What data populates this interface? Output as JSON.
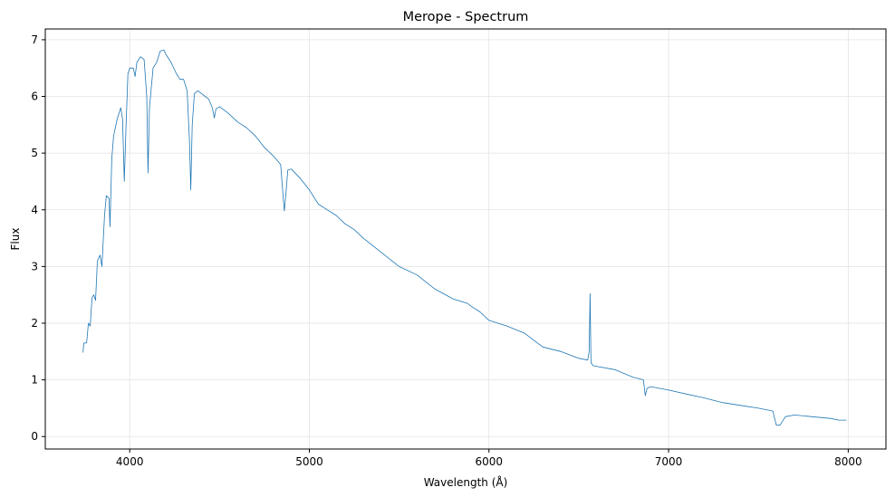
{
  "chart_data": {
    "type": "line",
    "title": "Merope - Spectrum",
    "xlabel": "Wavelength (Å)",
    "ylabel": "Flux",
    "xlim": [
      3530,
      8210
    ],
    "ylim": [
      -0.22,
      7.19
    ],
    "xticks": [
      4000,
      5000,
      6000,
      7000,
      8000
    ],
    "yticks": [
      0,
      1,
      2,
      3,
      4,
      5,
      6,
      7
    ],
    "grid": true,
    "line_color": "#1f77b4",
    "series": [
      {
        "x": [
          3740,
          3745,
          3760,
          3770,
          3780,
          3790,
          3800,
          3810,
          3820,
          3835,
          3845,
          3860,
          3870,
          3885,
          3890,
          3900,
          3910,
          3930,
          3950,
          3960,
          3970,
          3980,
          3990,
          4000,
          4020,
          4030,
          4040,
          4060,
          4080,
          4095,
          4102,
          4110,
          4130,
          4150,
          4170,
          4190,
          4200,
          4230,
          4260,
          4280,
          4300,
          4320,
          4333,
          4340,
          4348,
          4360,
          4380,
          4400,
          4420,
          4440,
          4460,
          4471,
          4480,
          4500,
          4550,
          4600,
          4650,
          4700,
          4750,
          4800,
          4840,
          4855,
          4861,
          4870,
          4880,
          4900,
          4950,
          5000,
          5050,
          5100,
          5150,
          5200,
          5250,
          5300,
          5400,
          5500,
          5600,
          5700,
          5800,
          5880,
          5900,
          5950,
          6000,
          6100,
          6200,
          6270,
          6300,
          6400,
          6500,
          6550,
          6558,
          6563,
          6568,
          6580,
          6700,
          6800,
          6860,
          6870,
          6880,
          6900,
          7000,
          7100,
          7200,
          7300,
          7400,
          7500,
          7580,
          7600,
          7620,
          7650,
          7700,
          7800,
          7900,
          7950,
          7990
        ],
        "y": [
          1.48,
          1.65,
          1.65,
          2.0,
          1.95,
          2.45,
          2.5,
          2.4,
          3.1,
          3.2,
          3.0,
          3.9,
          4.25,
          4.2,
          3.7,
          4.9,
          5.3,
          5.6,
          5.8,
          5.6,
          4.5,
          5.5,
          6.4,
          6.5,
          6.5,
          6.35,
          6.6,
          6.7,
          6.65,
          6.0,
          4.65,
          5.8,
          6.5,
          6.6,
          6.8,
          6.82,
          6.75,
          6.6,
          6.4,
          6.3,
          6.3,
          6.1,
          5.2,
          4.35,
          5.5,
          6.05,
          6.1,
          6.05,
          6.0,
          5.95,
          5.8,
          5.62,
          5.78,
          5.82,
          5.7,
          5.55,
          5.45,
          5.3,
          5.1,
          4.95,
          4.8,
          4.2,
          3.98,
          4.3,
          4.7,
          4.72,
          4.55,
          4.35,
          4.1,
          4.0,
          3.9,
          3.75,
          3.65,
          3.5,
          3.25,
          3.0,
          2.85,
          2.6,
          2.43,
          2.35,
          2.3,
          2.2,
          2.05,
          1.95,
          1.82,
          1.65,
          1.58,
          1.5,
          1.38,
          1.35,
          1.5,
          2.52,
          1.3,
          1.25,
          1.18,
          1.05,
          1.0,
          0.72,
          0.85,
          0.88,
          0.82,
          0.75,
          0.68,
          0.6,
          0.55,
          0.5,
          0.45,
          0.2,
          0.2,
          0.35,
          0.38,
          0.35,
          0.32,
          0.29,
          0.29
        ]
      }
    ]
  }
}
